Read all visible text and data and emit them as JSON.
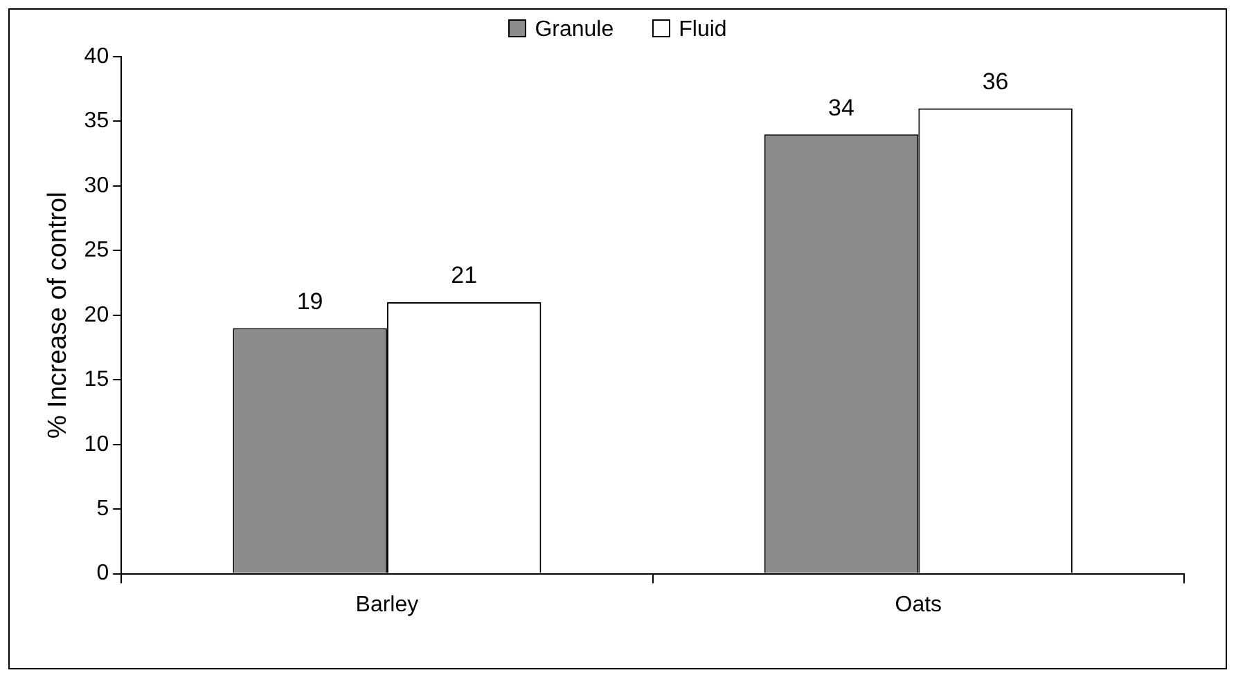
{
  "chart_data": {
    "type": "bar",
    "ylabel": "% Increase of control",
    "categories": [
      "Barley",
      "Oats"
    ],
    "series": [
      {
        "name": "Granule",
        "color": "#8c8c8c",
        "values": [
          19,
          34
        ]
      },
      {
        "name": "Fluid",
        "color": "#ffffff",
        "values": [
          21,
          36
        ]
      }
    ],
    "ylim": [
      0,
      40
    ],
    "yticks": [
      0,
      5,
      10,
      15,
      20,
      25,
      30,
      35,
      40
    ],
    "grid": false,
    "legend": "top",
    "data_labels": true
  }
}
